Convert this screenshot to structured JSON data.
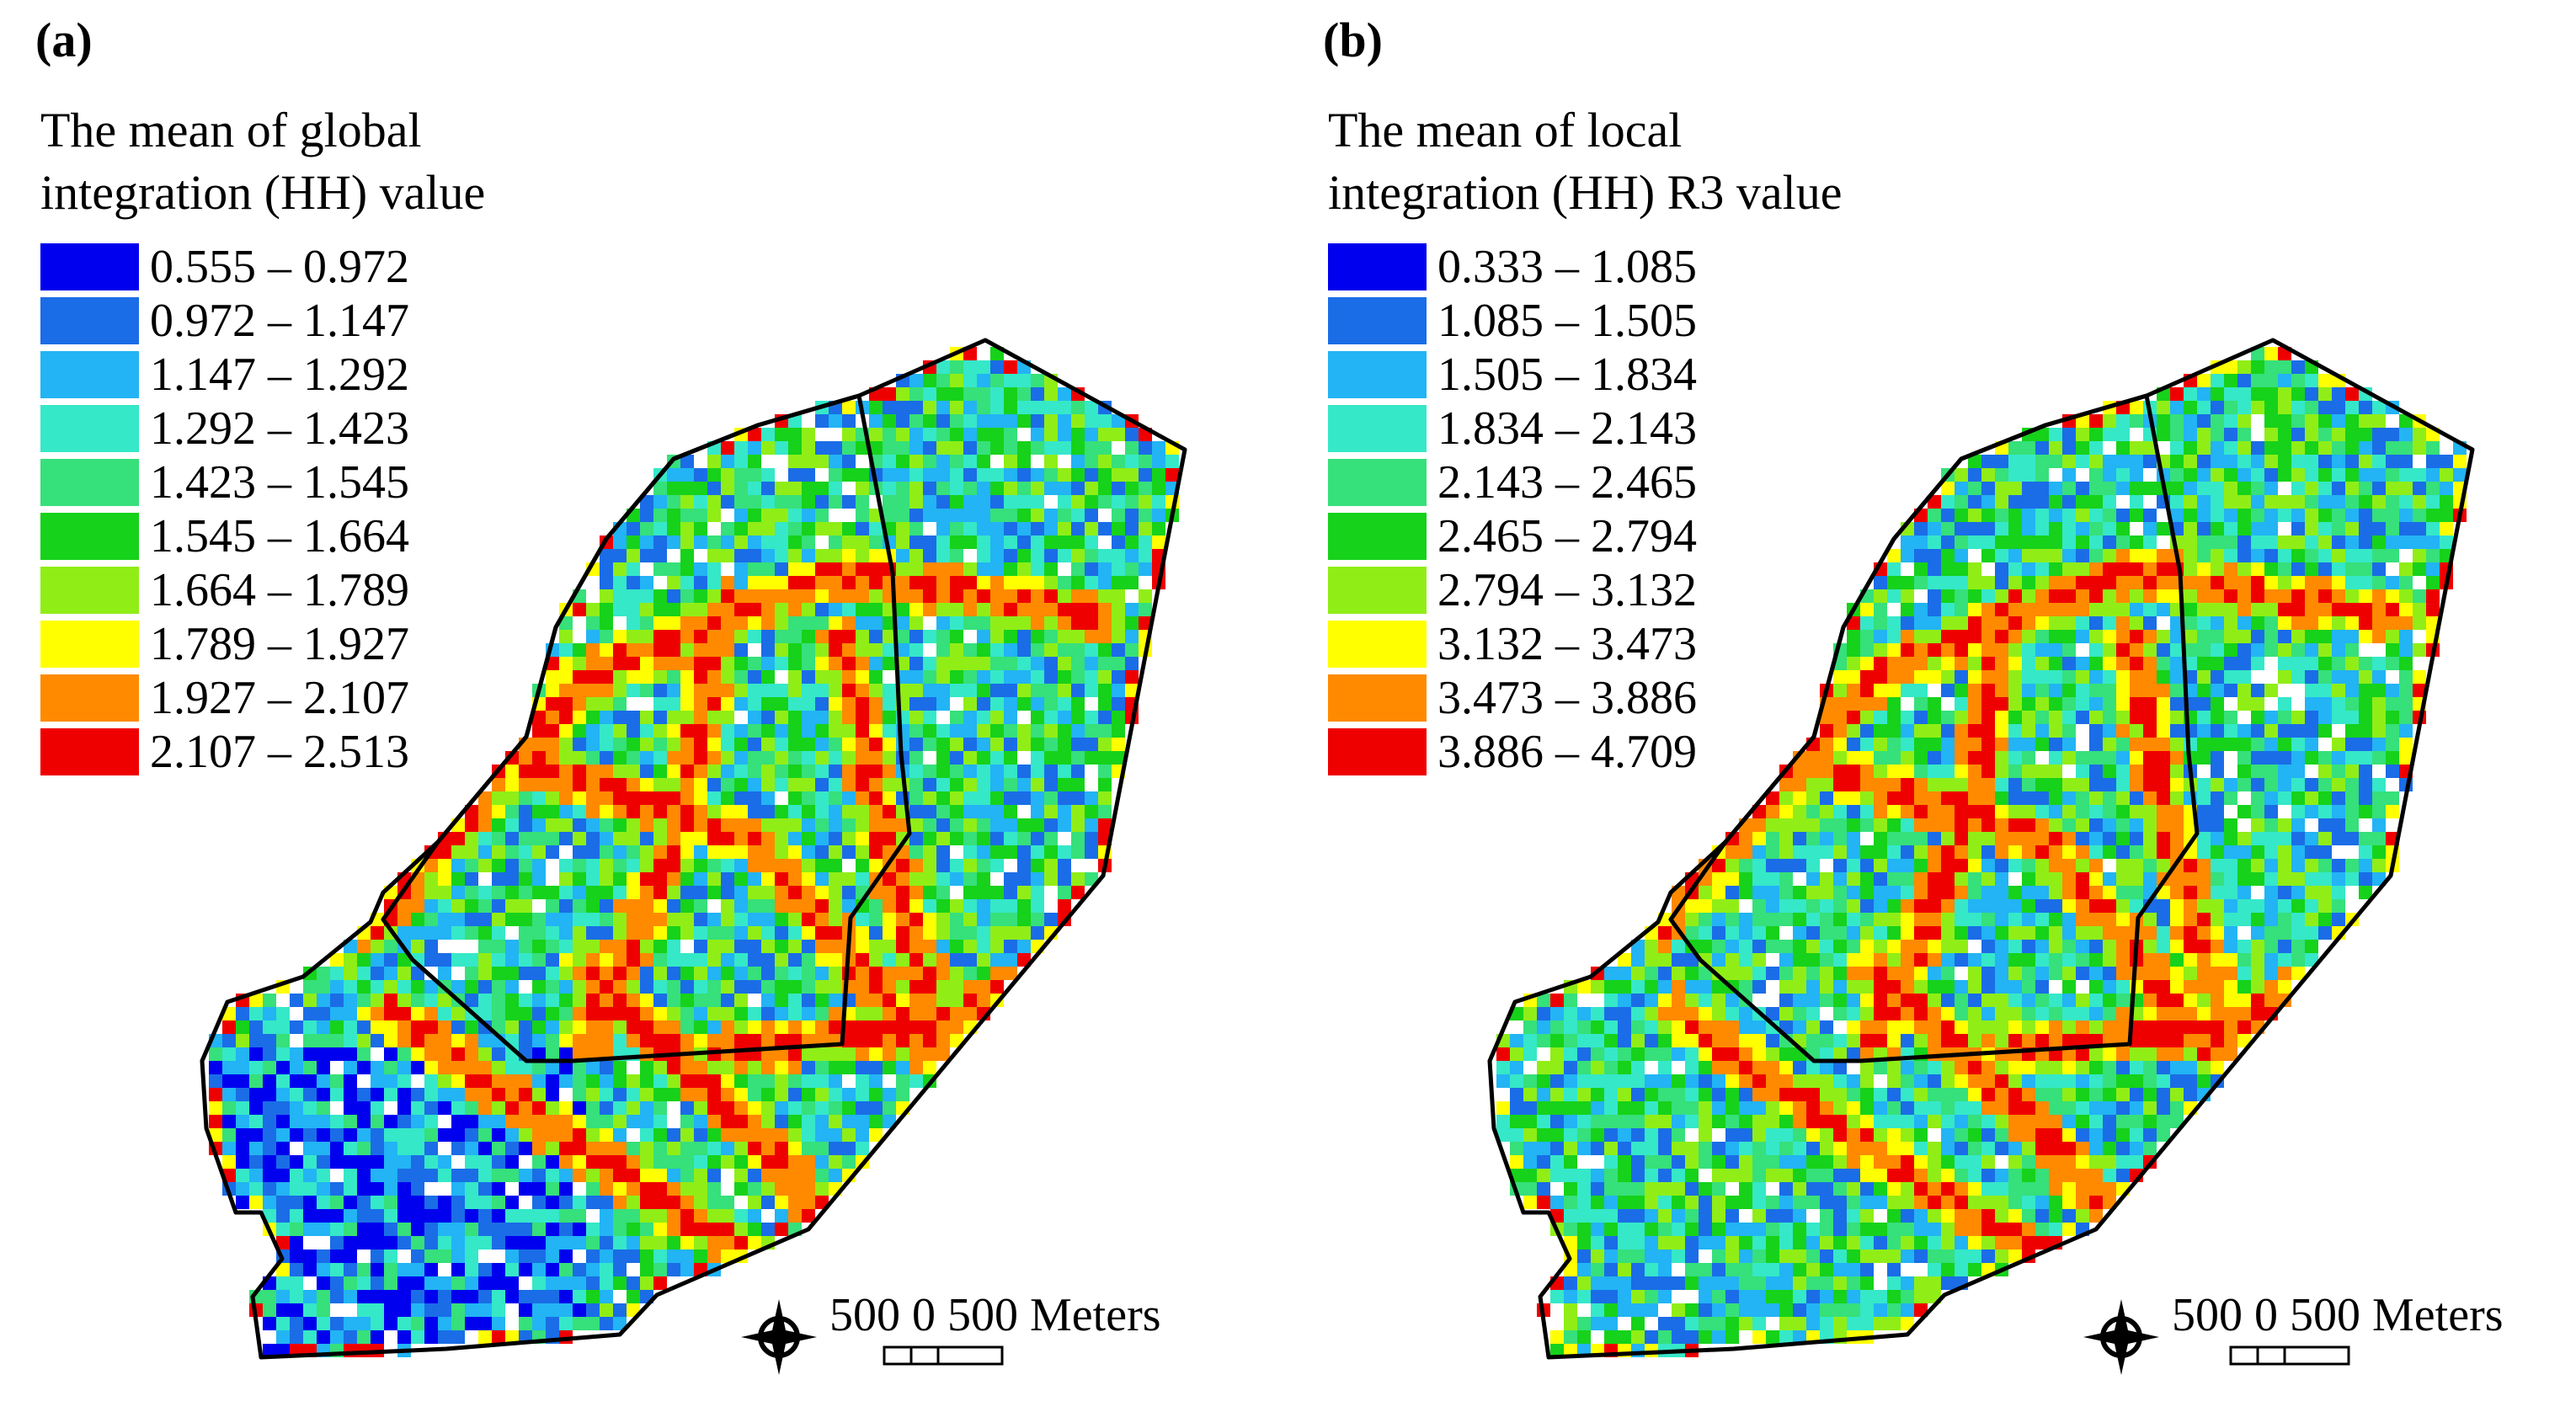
{
  "colors": [
    "#0000ee",
    "#1a6de6",
    "#22b4f4",
    "#35e8c8",
    "#36e07a",
    "#16d21a",
    "#90ee16",
    "#ffff00",
    "#ff8a00",
    "#ee0000"
  ],
  "panels": [
    {
      "label": "(a)",
      "title_lines": [
        "The mean of global",
        "integration (HH) value"
      ],
      "legend": [
        "0.555 – 0.972",
        "0.972 – 1.147",
        "1.147 – 1.292",
        "1.292 – 1.423",
        "1.423 – 1.545",
        "1.545 – 1.664",
        "1.664 – 1.789",
        "1.789 – 1.927",
        "1.927 – 2.107",
        "2.107 – 2.513"
      ],
      "scale_text": "500 0 500 Meters"
    },
    {
      "label": "(b)",
      "title_lines": [
        "The mean of local",
        "integration (HH) R3 value"
      ],
      "legend": [
        "0.333 – 1.085",
        "1.085 – 1.505",
        "1.505 – 1.834",
        "1.834 – 2.143",
        "2.143 – 2.465",
        "2.465 – 2.794",
        "2.794 – 3.132",
        "3.132 – 3.473",
        "3.473 – 3.886",
        "3.886 – 4.709"
      ],
      "scale_text": "500 0 500 Meters"
    }
  ]
}
